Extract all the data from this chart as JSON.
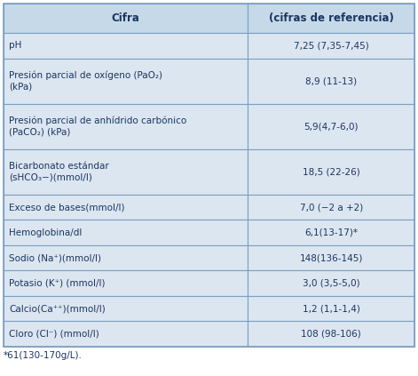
{
  "header": [
    "Cifra",
    "(cifras de referencia)"
  ],
  "rows": [
    [
      "pH",
      "7,25 (7,35-7,45)"
    ],
    [
      "Presión parcial de oxígeno (PaO₂)\n(kPa)",
      "8,9 (11-13)"
    ],
    [
      "Presión parcial de anhídrido carbónico\n(PaCO₂) (kPa)",
      "5,9(4,7-6,0)"
    ],
    [
      "Bicarbonato estándar\n(sHCO₃−)(mmol/l)",
      "18,5 (22-26)"
    ],
    [
      "Exceso de bases(mmol/l)",
      "7,0 (−2 a +2)"
    ],
    [
      "Hemoglobina/dl",
      "6,1(13-17)*"
    ],
    [
      "Sodio (Na⁺)(mmol/l)",
      "148(136-145)"
    ],
    [
      "Potasio (K⁺) (mmol/l)",
      "3,0 (3,5-5,0)"
    ],
    [
      "Calcio(Ca⁺⁺)(mmol/l)",
      "1,2 (1,1-1,4)"
    ],
    [
      "Cloro (Cl⁻) (mmol/l)",
      "108 (98-106)"
    ]
  ],
  "footnote": "*61(130-170g/L).",
  "header_bg": "#c5d9e8",
  "row_bg": "#dce6f1",
  "border_color": "#7a9fc2",
  "header_text_color": "#1a3560",
  "row_text_color": "#1a3560",
  "col_split": 0.595,
  "fig_width": 4.71,
  "fig_height": 4.23,
  "dpi": 100
}
